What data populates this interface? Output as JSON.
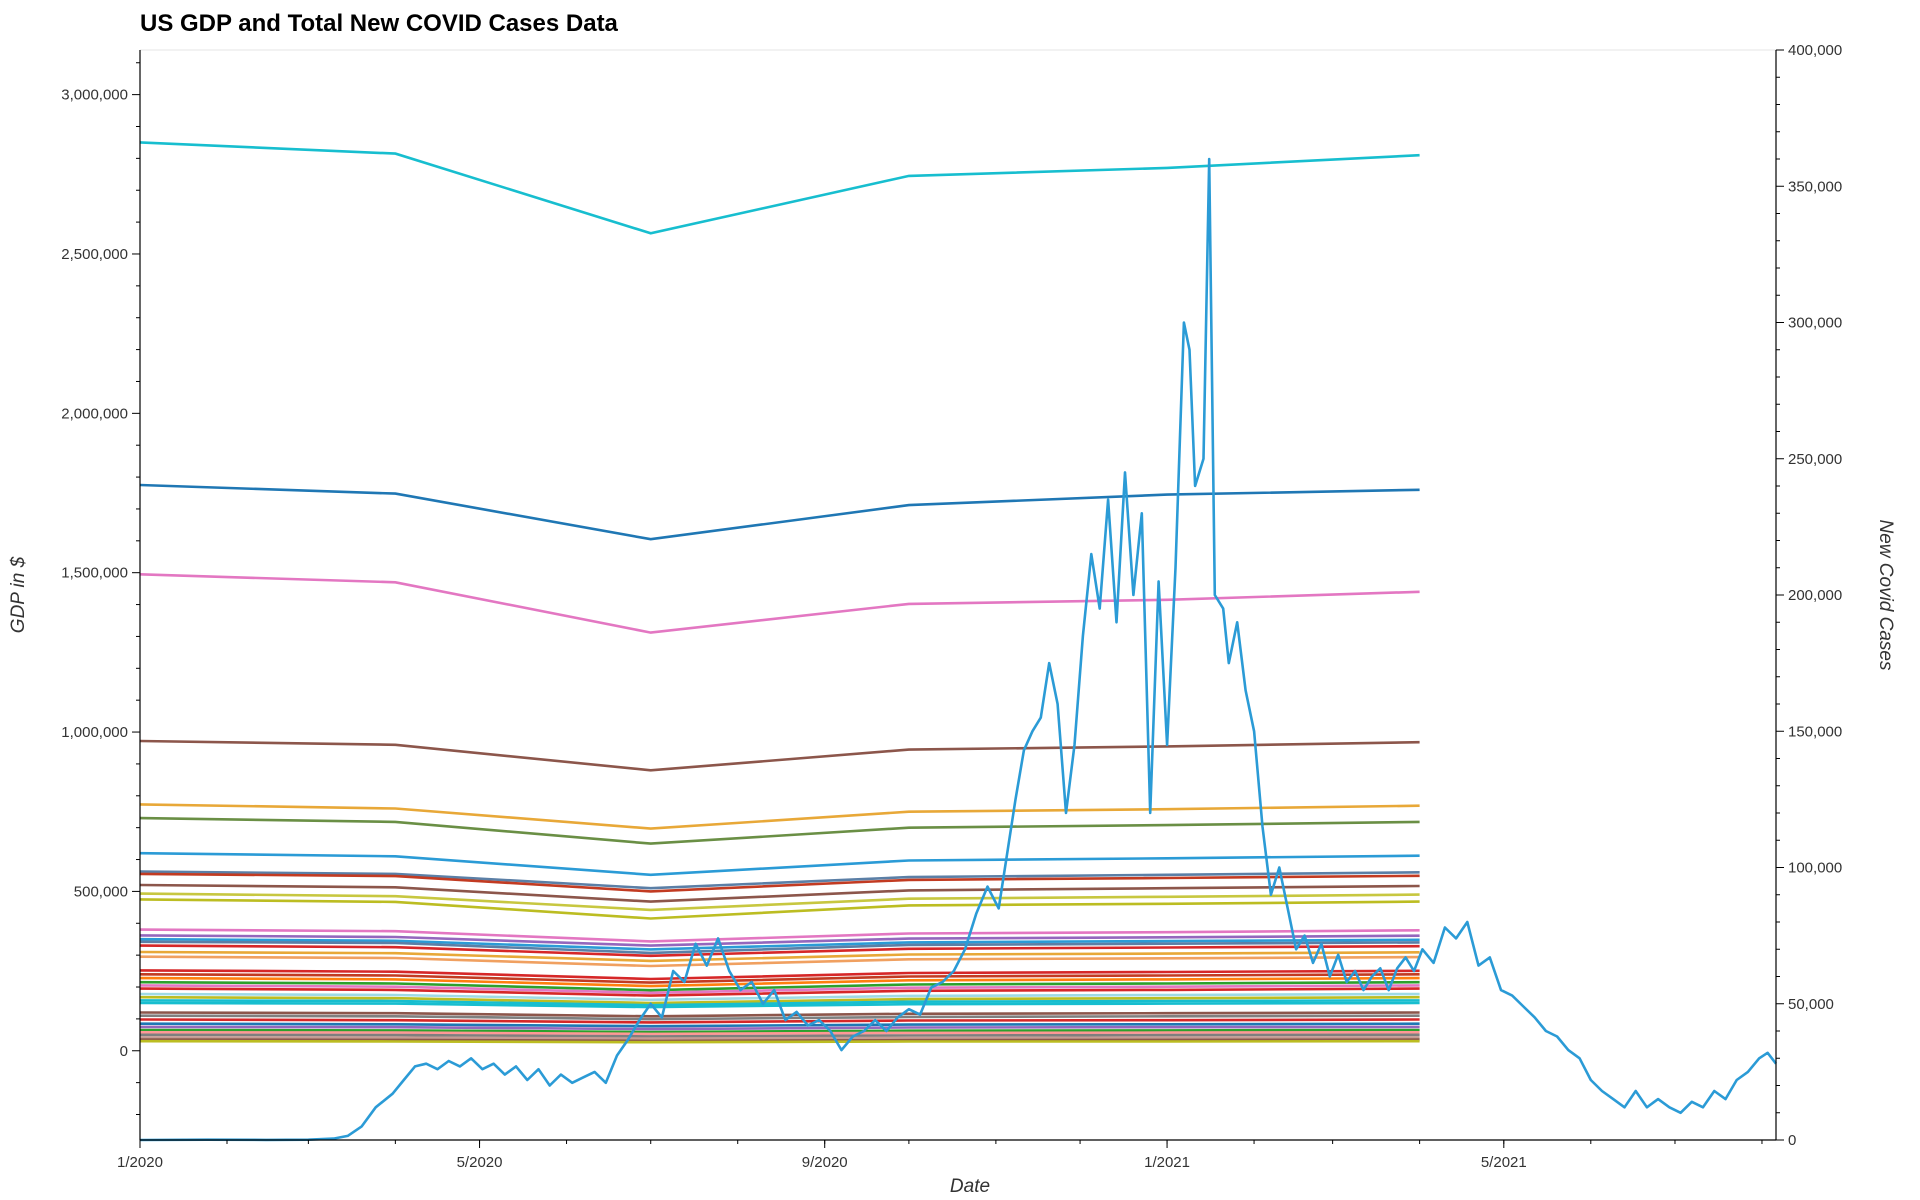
{
  "chart_data": {
    "type": "line",
    "title": "US GDP and Total New COVID Cases Data",
    "xlabel": "Date",
    "ylabel_left": "GDP in $",
    "ylabel_right": "New Covid Cases",
    "x_range": [
      "2020-01-01",
      "2021-08-06"
    ],
    "ylim_left": [
      -280000,
      3140000
    ],
    "ylim_right": [
      0,
      400000
    ],
    "x_ticks": [
      {
        "date": "2020-01-01",
        "label": "1/2020"
      },
      {
        "date": "2020-05-01",
        "label": "5/2020"
      },
      {
        "date": "2020-09-01",
        "label": "9/2020"
      },
      {
        "date": "2021-01-01",
        "label": "1/2021"
      },
      {
        "date": "2021-05-01",
        "label": "5/2021"
      }
    ],
    "y_left_ticks": [
      {
        "value": 0,
        "label": "0"
      },
      {
        "value": 500000,
        "label": "500,000"
      },
      {
        "value": 1000000,
        "label": "1,000,000"
      },
      {
        "value": 1500000,
        "label": "1,500,000"
      },
      {
        "value": 2000000,
        "label": "2,000,000"
      },
      {
        "value": 2500000,
        "label": "2,500,000"
      },
      {
        "value": 3000000,
        "label": "3,000,000"
      }
    ],
    "y_right_ticks": [
      {
        "value": 0,
        "label": "0"
      },
      {
        "value": 50000,
        "label": "50,000"
      },
      {
        "value": 100000,
        "label": "100,000"
      },
      {
        "value": 150000,
        "label": "150,000"
      },
      {
        "value": 200000,
        "label": "200,000"
      },
      {
        "value": 250000,
        "label": "250,000"
      },
      {
        "value": 300000,
        "label": "300,000"
      },
      {
        "value": 350000,
        "label": "350,000"
      },
      {
        "value": 400000,
        "label": "400,000"
      }
    ],
    "gdp_dates": [
      "2020-01-01",
      "2020-04-01",
      "2020-07-01",
      "2020-10-01",
      "2021-01-01",
      "2021-04-01"
    ],
    "gdp_series": [
      {
        "color": "#17becf",
        "values": [
          2850000,
          2815000,
          2565000,
          2745000,
          2770000,
          2810000
        ]
      },
      {
        "color": "#1f77b4",
        "values": [
          1775000,
          1748000,
          1605000,
          1712000,
          1745000,
          1760000
        ]
      },
      {
        "color": "#e377c2",
        "values": [
          1495000,
          1470000,
          1312000,
          1402000,
          1415000,
          1440000
        ]
      },
      {
        "color": "#8c564b",
        "values": [
          972000,
          960000,
          880000,
          945000,
          955000,
          968000
        ]
      },
      {
        "color": "#e8a838",
        "values": [
          773000,
          760000,
          697000,
          750000,
          758000,
          769000
        ]
      },
      {
        "color": "#6a8f45",
        "values": [
          730000,
          718000,
          650000,
          700000,
          708000,
          718000
        ]
      },
      {
        "color": "#2b9bd6",
        "values": [
          620000,
          610000,
          552000,
          597000,
          604000,
          612000
        ]
      },
      {
        "color": "#5b7fa6",
        "values": [
          562000,
          555000,
          510000,
          545000,
          552000,
          560000
        ]
      },
      {
        "color": "#c23b22",
        "values": [
          555000,
          548000,
          500000,
          536000,
          542000,
          549000
        ]
      },
      {
        "color": "#8c564b",
        "values": [
          520000,
          513000,
          468000,
          503000,
          510000,
          517000
        ]
      },
      {
        "color": "#c7c740",
        "values": [
          493000,
          485000,
          442000,
          477000,
          483000,
          490000
        ]
      },
      {
        "color": "#bcbd22",
        "values": [
          475000,
          467000,
          415000,
          456000,
          461000,
          468000
        ]
      },
      {
        "color": "#e377c2",
        "values": [
          380000,
          375000,
          343000,
          368000,
          372000,
          378000
        ]
      },
      {
        "color": "#9467bd",
        "values": [
          362000,
          357000,
          330000,
          352000,
          356000,
          361000
        ]
      },
      {
        "color": "#2b9bd6",
        "values": [
          350000,
          345000,
          318000,
          340000,
          344000,
          348000
        ]
      },
      {
        "color": "#5b7fa6",
        "values": [
          342000,
          338000,
          307000,
          332000,
          336000,
          340000
        ]
      },
      {
        "color": "#d62728",
        "values": [
          330000,
          325000,
          298000,
          320000,
          324000,
          328000
        ]
      },
      {
        "color": "#e8a838",
        "values": [
          310000,
          306000,
          282000,
          302000,
          305000,
          309000
        ]
      },
      {
        "color": "#f0a060",
        "values": [
          295000,
          291000,
          266000,
          287000,
          290000,
          294000
        ]
      },
      {
        "color": "#d62728",
        "values": [
          252000,
          248000,
          225000,
          244000,
          247000,
          251000
        ]
      },
      {
        "color": "#c23b22",
        "values": [
          240000,
          236000,
          214000,
          233000,
          236000,
          240000
        ]
      },
      {
        "color": "#ff7f0e",
        "values": [
          228000,
          224000,
          203000,
          221000,
          224000,
          228000
        ]
      },
      {
        "color": "#2ca02c",
        "values": [
          215000,
          211000,
          190000,
          208000,
          211000,
          215000
        ]
      },
      {
        "color": "#e377c2",
        "values": [
          205000,
          201000,
          182000,
          198000,
          201000,
          205000
        ]
      },
      {
        "color": "#d62728",
        "values": [
          195000,
          191000,
          173000,
          188000,
          191000,
          195000
        ]
      },
      {
        "color": "#9edae5",
        "values": [
          178000,
          175000,
          160000,
          172000,
          175000,
          178000
        ]
      },
      {
        "color": "#bcbd22",
        "values": [
          168000,
          165000,
          150000,
          162000,
          165000,
          168000
        ]
      },
      {
        "color": "#17becf",
        "values": [
          158000,
          156000,
          143000,
          154000,
          156000,
          158000
        ]
      },
      {
        "color": "#17becf",
        "values": [
          150000,
          148000,
          137000,
          146000,
          148000,
          150000
        ]
      },
      {
        "color": "#8c564b",
        "values": [
          120000,
          118000,
          108000,
          116000,
          118000,
          120000
        ]
      },
      {
        "color": "#7f7f7f",
        "values": [
          110000,
          108000,
          99000,
          106000,
          108000,
          110000
        ]
      },
      {
        "color": "#d62728",
        "values": [
          98000,
          96000,
          89000,
          95000,
          96000,
          98000
        ]
      },
      {
        "color": "#1f77b4",
        "values": [
          85000,
          83000,
          77000,
          82000,
          83000,
          85000
        ]
      },
      {
        "color": "#9467bd",
        "values": [
          75000,
          74000,
          68000,
          73000,
          74000,
          75000
        ]
      },
      {
        "color": "#2ca02c",
        "values": [
          65000,
          64000,
          59000,
          63000,
          64000,
          65000
        ]
      },
      {
        "color": "#ff9896",
        "values": [
          58000,
          57000,
          53000,
          56000,
          57000,
          58000
        ]
      },
      {
        "color": "#7f7f7f",
        "values": [
          50000,
          49000,
          45000,
          48000,
          49000,
          50000
        ]
      },
      {
        "color": "#c49c94",
        "values": [
          42000,
          41000,
          38000,
          40000,
          41000,
          42000
        ]
      },
      {
        "color": "#8c564b",
        "values": [
          35000,
          34000,
          31000,
          33000,
          34000,
          35000
        ]
      },
      {
        "color": "#bcbd22",
        "values": [
          30000,
          29000,
          27000,
          29000,
          29000,
          30000
        ]
      }
    ],
    "covid_series": {
      "color": "#2b9bd6",
      "points": [
        [
          "2020-01-01",
          0
        ],
        [
          "2020-01-25",
          100
        ],
        [
          "2020-02-15",
          50
        ],
        [
          "2020-03-01",
          100
        ],
        [
          "2020-03-10",
          500
        ],
        [
          "2020-03-15",
          1500
        ],
        [
          "2020-03-20",
          5000
        ],
        [
          "2020-03-25",
          12000
        ],
        [
          "2020-03-31",
          17000
        ],
        [
          "2020-04-04",
          22000
        ],
        [
          "2020-04-08",
          27000
        ],
        [
          "2020-04-12",
          28000
        ],
        [
          "2020-04-16",
          26000
        ],
        [
          "2020-04-20",
          29000
        ],
        [
          "2020-04-24",
          27000
        ],
        [
          "2020-04-28",
          30000
        ],
        [
          "2020-05-02",
          26000
        ],
        [
          "2020-05-06",
          28000
        ],
        [
          "2020-05-10",
          24000
        ],
        [
          "2020-05-14",
          27000
        ],
        [
          "2020-05-18",
          22000
        ],
        [
          "2020-05-22",
          26000
        ],
        [
          "2020-05-26",
          20000
        ],
        [
          "2020-05-30",
          24000
        ],
        [
          "2020-06-03",
          21000
        ],
        [
          "2020-06-07",
          23000
        ],
        [
          "2020-06-11",
          25000
        ],
        [
          "2020-06-15",
          21000
        ],
        [
          "2020-06-19",
          31000
        ],
        [
          "2020-06-23",
          37000
        ],
        [
          "2020-06-27",
          44000
        ],
        [
          "2020-07-01",
          50000
        ],
        [
          "2020-07-05",
          45000
        ],
        [
          "2020-07-09",
          62000
        ],
        [
          "2020-07-13",
          58000
        ],
        [
          "2020-07-17",
          72000
        ],
        [
          "2020-07-21",
          64000
        ],
        [
          "2020-07-25",
          74000
        ],
        [
          "2020-07-29",
          62000
        ],
        [
          "2020-08-02",
          55000
        ],
        [
          "2020-08-06",
          58000
        ],
        [
          "2020-08-10",
          50000
        ],
        [
          "2020-08-14",
          55000
        ],
        [
          "2020-08-18",
          44000
        ],
        [
          "2020-08-22",
          47000
        ],
        [
          "2020-08-26",
          42000
        ],
        [
          "2020-08-30",
          44000
        ],
        [
          "2020-09-03",
          40000
        ],
        [
          "2020-09-07",
          33000
        ],
        [
          "2020-09-11",
          38000
        ],
        [
          "2020-09-15",
          40000
        ],
        [
          "2020-09-19",
          44000
        ],
        [
          "2020-09-23",
          40000
        ],
        [
          "2020-09-27",
          45000
        ],
        [
          "2020-10-01",
          48000
        ],
        [
          "2020-10-05",
          46000
        ],
        [
          "2020-10-09",
          56000
        ],
        [
          "2020-10-13",
          58000
        ],
        [
          "2020-10-17",
          62000
        ],
        [
          "2020-10-21",
          70000
        ],
        [
          "2020-10-25",
          83000
        ],
        [
          "2020-10-29",
          93000
        ],
        [
          "2020-11-02",
          85000
        ],
        [
          "2020-11-05",
          105000
        ],
        [
          "2020-11-08",
          125000
        ],
        [
          "2020-11-11",
          143000
        ],
        [
          "2020-11-14",
          150000
        ],
        [
          "2020-11-17",
          155000
        ],
        [
          "2020-11-20",
          175000
        ],
        [
          "2020-11-23",
          160000
        ],
        [
          "2020-11-26",
          120000
        ],
        [
          "2020-11-29",
          145000
        ],
        [
          "2020-12-02",
          185000
        ],
        [
          "2020-12-05",
          215000
        ],
        [
          "2020-12-08",
          195000
        ],
        [
          "2020-12-11",
          235000
        ],
        [
          "2020-12-14",
          190000
        ],
        [
          "2020-12-17",
          245000
        ],
        [
          "2020-12-20",
          200000
        ],
        [
          "2020-12-23",
          230000
        ],
        [
          "2020-12-26",
          120000
        ],
        [
          "2020-12-29",
          205000
        ],
        [
          "2021-01-01",
          145000
        ],
        [
          "2021-01-04",
          210000
        ],
        [
          "2021-01-07",
          300000
        ],
        [
          "2021-01-09",
          290000
        ],
        [
          "2021-01-11",
          240000
        ],
        [
          "2021-01-14",
          250000
        ],
        [
          "2021-01-16",
          360000
        ],
        [
          "2021-01-18",
          200000
        ],
        [
          "2021-01-21",
          195000
        ],
        [
          "2021-01-23",
          175000
        ],
        [
          "2021-01-26",
          190000
        ],
        [
          "2021-01-29",
          165000
        ],
        [
          "2021-02-01",
          150000
        ],
        [
          "2021-02-04",
          115000
        ],
        [
          "2021-02-07",
          90000
        ],
        [
          "2021-02-10",
          100000
        ],
        [
          "2021-02-13",
          85000
        ],
        [
          "2021-02-16",
          70000
        ],
        [
          "2021-02-19",
          75000
        ],
        [
          "2021-02-22",
          65000
        ],
        [
          "2021-02-25",
          72000
        ],
        [
          "2021-02-28",
          60000
        ],
        [
          "2021-03-03",
          68000
        ],
        [
          "2021-03-06",
          58000
        ],
        [
          "2021-03-09",
          62000
        ],
        [
          "2021-03-12",
          55000
        ],
        [
          "2021-03-15",
          60000
        ],
        [
          "2021-03-18",
          63000
        ],
        [
          "2021-03-21",
          55000
        ],
        [
          "2021-03-24",
          63000
        ],
        [
          "2021-03-27",
          67000
        ],
        [
          "2021-03-30",
          62000
        ],
        [
          "2021-04-02",
          70000
        ],
        [
          "2021-04-06",
          65000
        ],
        [
          "2021-04-10",
          78000
        ],
        [
          "2021-04-14",
          74000
        ],
        [
          "2021-04-18",
          80000
        ],
        [
          "2021-04-22",
          64000
        ],
        [
          "2021-04-26",
          67000
        ],
        [
          "2021-04-30",
          55000
        ],
        [
          "2021-05-04",
          53000
        ],
        [
          "2021-05-08",
          49000
        ],
        [
          "2021-05-12",
          45000
        ],
        [
          "2021-05-16",
          40000
        ],
        [
          "2021-05-20",
          38000
        ],
        [
          "2021-05-24",
          33000
        ],
        [
          "2021-05-28",
          30000
        ],
        [
          "2021-06-01",
          22000
        ],
        [
          "2021-06-05",
          18000
        ],
        [
          "2021-06-09",
          15000
        ],
        [
          "2021-06-13",
          12000
        ],
        [
          "2021-06-17",
          18000
        ],
        [
          "2021-06-21",
          12000
        ],
        [
          "2021-06-25",
          15000
        ],
        [
          "2021-06-29",
          12000
        ],
        [
          "2021-07-03",
          10000
        ],
        [
          "2021-07-07",
          14000
        ],
        [
          "2021-07-11",
          12000
        ],
        [
          "2021-07-15",
          18000
        ],
        [
          "2021-07-19",
          15000
        ],
        [
          "2021-07-23",
          22000
        ],
        [
          "2021-07-27",
          25000
        ],
        [
          "2021-07-31",
          30000
        ],
        [
          "2021-08-03",
          32000
        ],
        [
          "2021-08-06",
          28000
        ]
      ]
    }
  }
}
